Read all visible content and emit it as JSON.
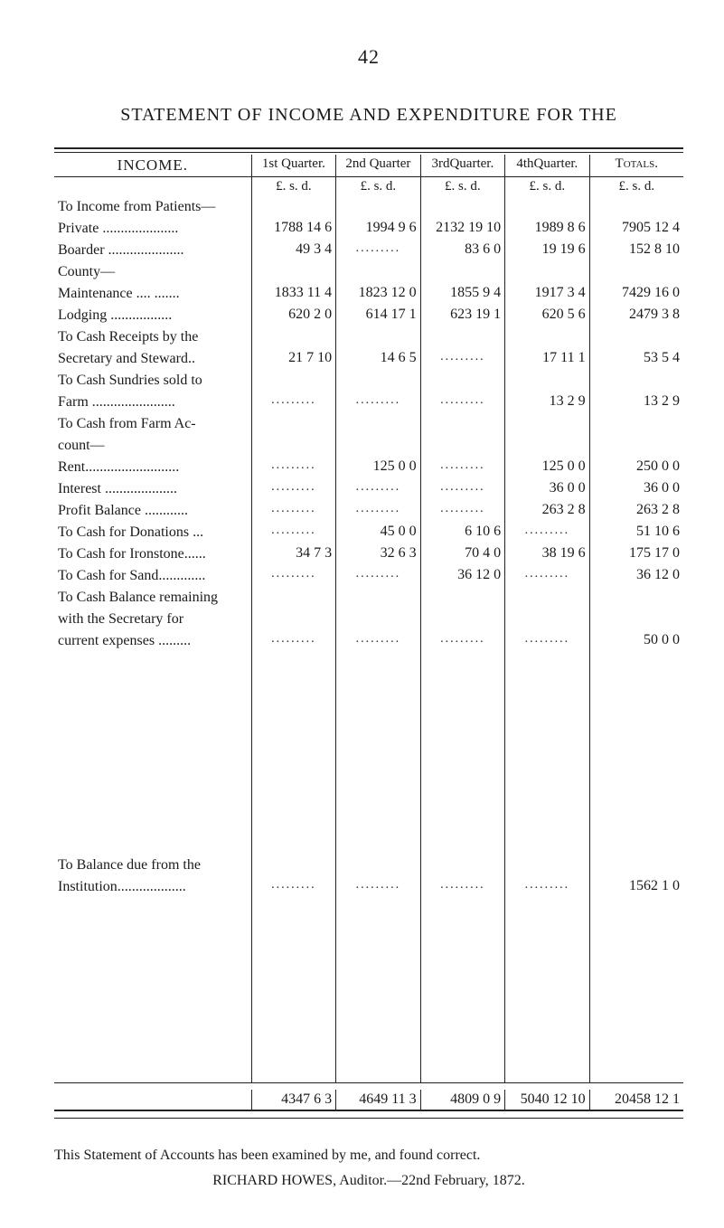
{
  "pageNumber": "42",
  "title": "STATEMENT OF INCOME AND EXPENDITURE FOR THE",
  "headers": {
    "income": "INCOME.",
    "q1": "1st Quarter.",
    "q2": "2nd Quarter",
    "q3": "3rdQuarter.",
    "q4": "4thQuarter.",
    "totals": "Totals.",
    "lsd": "£.  s.  d."
  },
  "rows": [
    {
      "desc": "To Income from Patients—",
      "indent": "",
      "q1": "",
      "q2": "",
      "q3": "",
      "q4": "",
      "tot": ""
    },
    {
      "desc": "Private  .....................",
      "indent": "sub1",
      "q1": "1788 14  6",
      "q2": "1994  9  6",
      "q3": "2132 19 10",
      "q4": "1989  8  6",
      "tot": "7905 12  4"
    },
    {
      "desc": "Boarder  .....................",
      "indent": "sub1",
      "q1": "49  3  4",
      "q2": ".........",
      "q3": "83  6  0",
      "q4": "19 19  6",
      "tot": "152  8 10"
    },
    {
      "desc": "County—",
      "indent": "sub1",
      "q1": "",
      "q2": "",
      "q3": "",
      "q4": "",
      "tot": ""
    },
    {
      "desc": "Maintenance ....  .......",
      "indent": "sub2",
      "q1": "1833 11  4",
      "q2": "1823 12  0",
      "q3": "1855  9  4",
      "q4": "1917  3  4",
      "tot": "7429 16  0"
    },
    {
      "desc": "Lodging  .................",
      "indent": "sub2",
      "q1": "620  2  0",
      "q2": "614 17  1",
      "q3": "623 19  1",
      "q4": "620  5  6",
      "tot": "2479  3  8"
    },
    {
      "desc": "To Cash Receipts by the",
      "indent": "",
      "q1": "",
      "q2": "",
      "q3": "",
      "q4": "",
      "tot": ""
    },
    {
      "desc": "Secretary and Steward..",
      "indent": "sub1",
      "q1": "21  7 10",
      "q2": "14  6  5",
      "q3": ".........",
      "q4": "17 11  1",
      "tot": "53  5  4"
    },
    {
      "desc": "To Cash Sundries sold to",
      "indent": "",
      "q1": "",
      "q2": "",
      "q3": "",
      "q4": "",
      "tot": ""
    },
    {
      "desc": "Farm  .......................",
      "indent": "sub1",
      "q1": ".........",
      "q2": ".........",
      "q3": ".........",
      "q4": "13  2  9",
      "tot": "13  2  9"
    },
    {
      "desc": "To Cash from Farm Ac-",
      "indent": "",
      "q1": "",
      "q2": "",
      "q3": "",
      "q4": "",
      "tot": ""
    },
    {
      "desc": "count—",
      "indent": "sub1",
      "q1": "",
      "q2": "",
      "q3": "",
      "q4": "",
      "tot": ""
    },
    {
      "desc": "Rent..........................",
      "indent": "sub1",
      "q1": ".........",
      "q2": "125  0  0",
      "q3": ".........",
      "q4": "125  0  0",
      "tot": "250  0  0"
    },
    {
      "desc": "Interest  ....................",
      "indent": "sub1",
      "q1": ".........",
      "q2": ".........",
      "q3": ".........",
      "q4": "36  0  0",
      "tot": "36  0  0"
    },
    {
      "desc": "Profit Balance  ............",
      "indent": "sub1",
      "q1": ".........",
      "q2": ".........",
      "q3": ".........",
      "q4": "263  2  8",
      "tot": "263  2  8"
    },
    {
      "desc": "To Cash for Donations ...",
      "indent": "",
      "q1": ".........",
      "q2": "45  0  0",
      "q3": "6 10  6",
      "q4": ".........",
      "tot": "51 10  6"
    },
    {
      "desc": "To Cash for Ironstone......",
      "indent": "",
      "q1": "34  7  3",
      "q2": "32  6  3",
      "q3": "70  4  0",
      "q4": "38 19  6",
      "tot": "175 17  0"
    },
    {
      "desc": "To Cash for Sand.............",
      "indent": "",
      "q1": ".........",
      "q2": ".........",
      "q3": "36 12  0",
      "q4": ".........",
      "tot": "36 12  0"
    },
    {
      "desc": "To Cash Balance remaining",
      "indent": "",
      "q1": "",
      "q2": "",
      "q3": "",
      "q4": "",
      "tot": ""
    },
    {
      "desc": "with the Secretary for",
      "indent": "sub1",
      "q1": "",
      "q2": "",
      "q3": "",
      "q4": "",
      "tot": ""
    },
    {
      "desc": "current expenses .........",
      "indent": "sub1",
      "q1": ".........",
      "q2": ".........",
      "q3": ".........",
      "q4": ".........",
      "tot": "50  0  0"
    }
  ],
  "balanceRow": {
    "desc1": "To Balance due from the",
    "desc2": "Institution...................",
    "q1": ".........",
    "q2": ".........",
    "q3": ".........",
    "q4": ".........",
    "tot": "1562  1  0"
  },
  "totalsRow": {
    "q1": "4347  6  3",
    "q2": "4649 11  3",
    "q3": "4809  0  9",
    "q4": "5040 12 10",
    "tot": "20458 12  1"
  },
  "footnote": {
    "line1": "This Statement of Accounts has been examined by me, and found correct.",
    "line2": "RICHARD HOWES, Auditor.—22nd February, 1872."
  },
  "styling": {
    "background": "#ffffff",
    "textColor": "#1a1a1a",
    "ruleColor": "#222222",
    "fontFamily": "Times New Roman",
    "baseFontSize": "16px",
    "pageWidth": 801,
    "pageHeight": 1297
  }
}
